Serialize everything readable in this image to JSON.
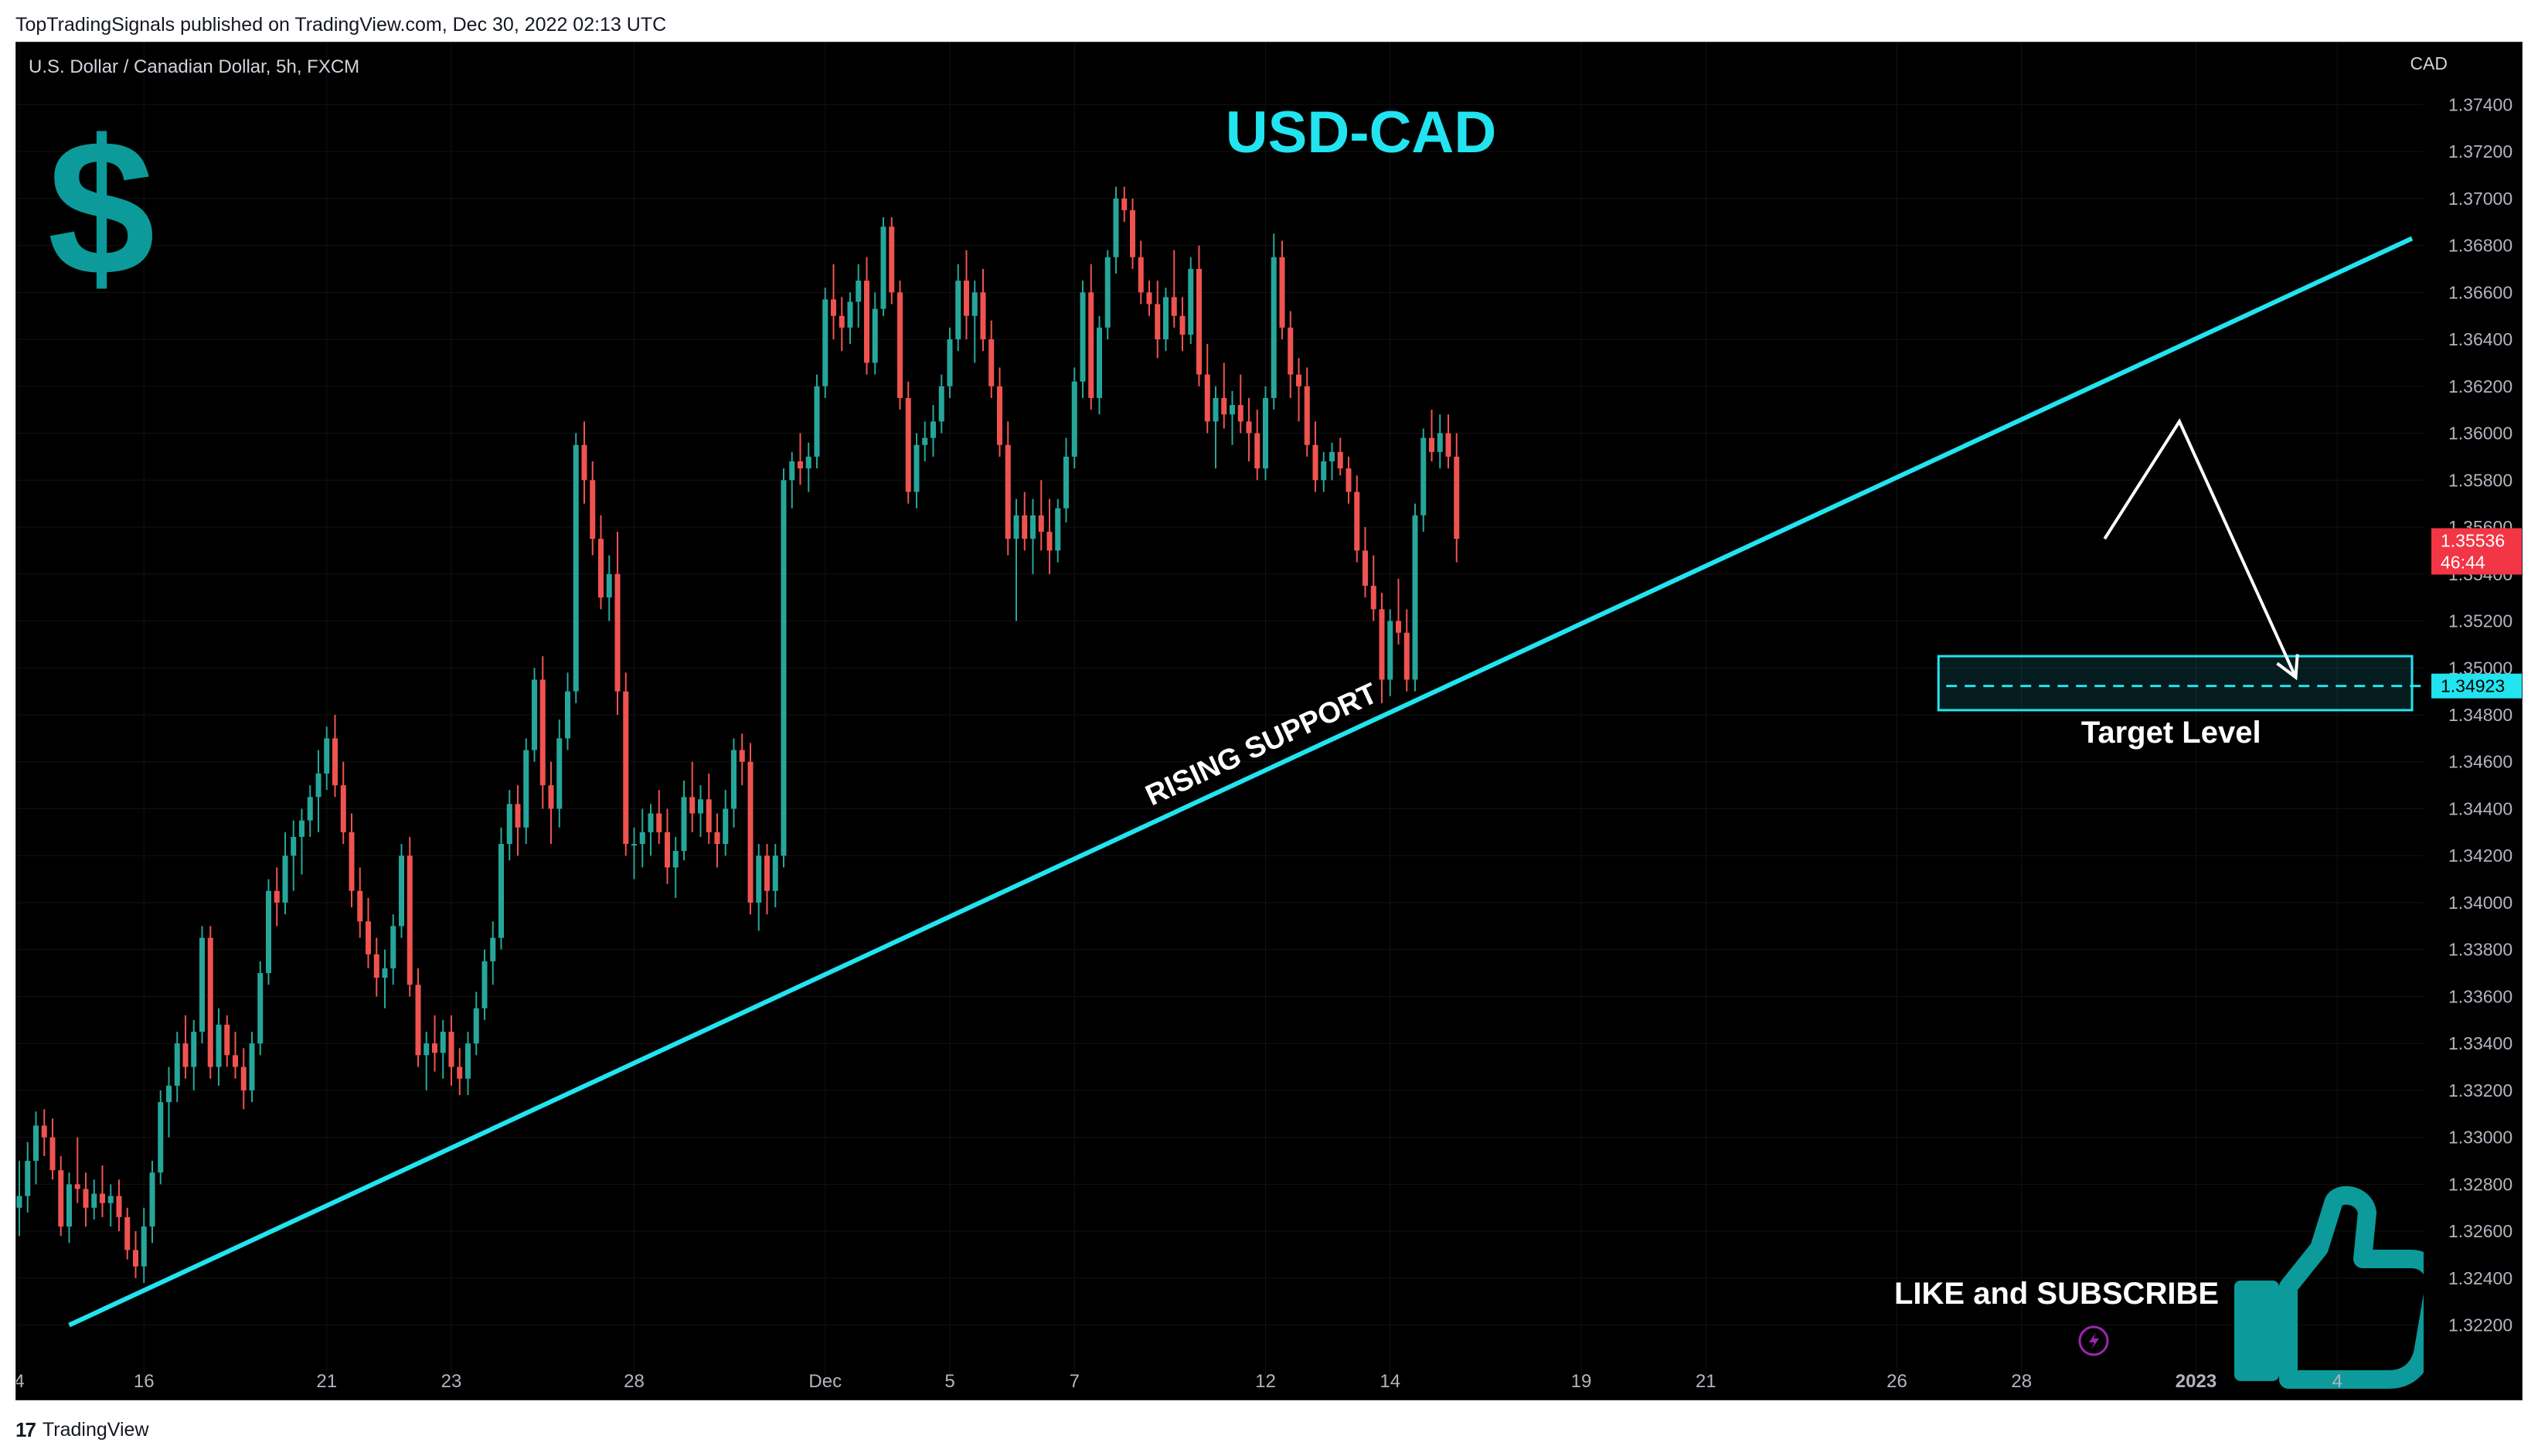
{
  "header": {
    "published_text": "TopTradingSignals published on TradingView.com, Dec 30, 2022 02:13 UTC"
  },
  "footer": {
    "brand": "TradingView",
    "logo_text": "17"
  },
  "chart_meta": {
    "symbol_line": "U.S. Dollar / Canadian Dollar, 5h, FXCM",
    "currency": "CAD"
  },
  "overlays": {
    "title": "USD-CAD",
    "dollar_icon": "dollar-sign-icon",
    "support_label": "RISING SUPPORT",
    "target_label": "Target Level",
    "cta_label": "LIKE and SUBSCRIBE",
    "thumbs_icon": "thumbs-up-icon",
    "bolt_icon": "lightning-bolt-icon"
  },
  "colors": {
    "up": "#26a69a",
    "down": "#ef5350",
    "accent": "#21e4f0",
    "teal_icon": "#0c9a9a",
    "price_badge": "#f23645",
    "grid": "#121212"
  },
  "chart_data": {
    "type": "candlestick",
    "title": "USD-CAD",
    "ylabel": "CAD",
    "ylim": [
      1.321,
      1.375
    ],
    "yticks": [
      "1.37400",
      "1.37200",
      "1.37000",
      "1.36800",
      "1.36600",
      "1.36400",
      "1.36200",
      "1.36000",
      "1.35800",
      "1.35600",
      "1.35400",
      "1.35200",
      "1.35000",
      "1.34800",
      "1.34600",
      "1.34400",
      "1.34200",
      "1.34000",
      "1.33800",
      "1.33600",
      "1.33400",
      "1.33200",
      "1.33000",
      "1.32800",
      "1.32600",
      "1.32400",
      "1.32200"
    ],
    "xticks": [
      {
        "label": "4",
        "idx": 0
      },
      {
        "label": "16",
        "idx": 15
      },
      {
        "label": "21",
        "idx": 37
      },
      {
        "label": "23",
        "idx": 52
      },
      {
        "label": "28",
        "idx": 74
      },
      {
        "label": "Dec",
        "idx": 97
      },
      {
        "label": "5",
        "idx": 112
      },
      {
        "label": "7",
        "idx": 127
      },
      {
        "label": "12",
        "idx": 150
      },
      {
        "label": "14",
        "idx": 165
      },
      {
        "label": "19",
        "idx": 188
      },
      {
        "label": "21",
        "idx": 203
      },
      {
        "label": "26",
        "idx": 226
      },
      {
        "label": "28",
        "idx": 241
      },
      {
        "label": "2023",
        "idx": 262
      },
      {
        "label": "4",
        "idx": 279
      }
    ],
    "current_price": {
      "value": "1.35536",
      "countdown": "46:44"
    },
    "target_price": "1.34923",
    "support_line": {
      "from": [
        6,
        1.322
      ],
      "to": [
        288,
        1.3683
      ]
    },
    "target_zone": {
      "from_idx": 231,
      "to_idx": 288,
      "low": 1.3482,
      "high": 1.3505
    },
    "projection_path": [
      [
        251,
        1.3555
      ],
      [
        260,
        1.3605
      ],
      [
        274,
        1.3496
      ]
    ],
    "points": [
      [
        1.327,
        1.329,
        1.3258,
        1.3275
      ],
      [
        1.3275,
        1.3298,
        1.3268,
        1.329
      ],
      [
        1.329,
        1.3311,
        1.328,
        1.3305
      ],
      [
        1.3305,
        1.3312,
        1.3292,
        1.33
      ],
      [
        1.33,
        1.3308,
        1.3282,
        1.3286
      ],
      [
        1.3286,
        1.3292,
        1.3258,
        1.3262
      ],
      [
        1.3262,
        1.3285,
        1.3255,
        1.328
      ],
      [
        1.328,
        1.33,
        1.3272,
        1.3278
      ],
      [
        1.3278,
        1.3285,
        1.3262,
        1.327
      ],
      [
        1.327,
        1.3282,
        1.3265,
        1.3276
      ],
      [
        1.3276,
        1.3288,
        1.3266,
        1.3272
      ],
      [
        1.3272,
        1.328,
        1.3262,
        1.3275
      ],
      [
        1.3275,
        1.3282,
        1.326,
        1.3266
      ],
      [
        1.3266,
        1.327,
        1.3248,
        1.3252
      ],
      [
        1.3252,
        1.326,
        1.324,
        1.3245
      ],
      [
        1.3245,
        1.327,
        1.3238,
        1.3262
      ],
      [
        1.3262,
        1.329,
        1.3255,
        1.3285
      ],
      [
        1.3285,
        1.332,
        1.328,
        1.3315
      ],
      [
        1.3315,
        1.333,
        1.33,
        1.3322
      ],
      [
        1.3322,
        1.3345,
        1.3315,
        1.334
      ],
      [
        1.334,
        1.3352,
        1.3325,
        1.333
      ],
      [
        1.333,
        1.335,
        1.332,
        1.3345
      ],
      [
        1.3345,
        1.339,
        1.334,
        1.3385
      ],
      [
        1.3385,
        1.339,
        1.3325,
        1.333
      ],
      [
        1.333,
        1.3355,
        1.3322,
        1.3348
      ],
      [
        1.3348,
        1.3352,
        1.333,
        1.3335
      ],
      [
        1.3335,
        1.3345,
        1.3325,
        1.333
      ],
      [
        1.333,
        1.3338,
        1.3312,
        1.332
      ],
      [
        1.332,
        1.3345,
        1.3315,
        1.334
      ],
      [
        1.334,
        1.3375,
        1.3335,
        1.337
      ],
      [
        1.337,
        1.341,
        1.3365,
        1.3405
      ],
      [
        1.3405,
        1.3415,
        1.339,
        1.34
      ],
      [
        1.34,
        1.343,
        1.3395,
        1.342
      ],
      [
        1.342,
        1.3435,
        1.3405,
        1.3428
      ],
      [
        1.3428,
        1.344,
        1.3412,
        1.3435
      ],
      [
        1.3435,
        1.345,
        1.3428,
        1.3445
      ],
      [
        1.3445,
        1.3465,
        1.343,
        1.3455
      ],
      [
        1.3455,
        1.3475,
        1.3448,
        1.347
      ],
      [
        1.347,
        1.348,
        1.3445,
        1.345
      ],
      [
        1.345,
        1.346,
        1.3425,
        1.343
      ],
      [
        1.343,
        1.3438,
        1.3398,
        1.3405
      ],
      [
        1.3405,
        1.3415,
        1.3385,
        1.3392
      ],
      [
        1.3392,
        1.3402,
        1.3372,
        1.3378
      ],
      [
        1.3378,
        1.3385,
        1.336,
        1.3368
      ],
      [
        1.3368,
        1.338,
        1.3355,
        1.3372
      ],
      [
        1.3372,
        1.3395,
        1.3365,
        1.339
      ],
      [
        1.339,
        1.3425,
        1.3385,
        1.342
      ],
      [
        1.342,
        1.3428,
        1.336,
        1.3365
      ],
      [
        1.3365,
        1.3372,
        1.333,
        1.3335
      ],
      [
        1.3335,
        1.3345,
        1.332,
        1.334
      ],
      [
        1.334,
        1.3352,
        1.3328,
        1.3336
      ],
      [
        1.3336,
        1.335,
        1.3325,
        1.3345
      ],
      [
        1.3345,
        1.3352,
        1.3322,
        1.333
      ],
      [
        1.333,
        1.3338,
        1.3318,
        1.3325
      ],
      [
        1.3325,
        1.3345,
        1.3318,
        1.334
      ],
      [
        1.334,
        1.3362,
        1.3335,
        1.3355
      ],
      [
        1.3355,
        1.338,
        1.335,
        1.3375
      ],
      [
        1.3375,
        1.3392,
        1.3365,
        1.3385
      ],
      [
        1.3385,
        1.3432,
        1.338,
        1.3425
      ],
      [
        1.3425,
        1.3448,
        1.3418,
        1.3442
      ],
      [
        1.3442,
        1.345,
        1.342,
        1.3432
      ],
      [
        1.3432,
        1.347,
        1.3425,
        1.3465
      ],
      [
        1.3465,
        1.35,
        1.346,
        1.3495
      ],
      [
        1.3495,
        1.3505,
        1.344,
        1.345
      ],
      [
        1.345,
        1.346,
        1.3425,
        1.344
      ],
      [
        1.344,
        1.3478,
        1.3432,
        1.347
      ],
      [
        1.347,
        1.3498,
        1.3465,
        1.349
      ],
      [
        1.349,
        1.36,
        1.3485,
        1.3595
      ],
      [
        1.3595,
        1.3605,
        1.357,
        1.358
      ],
      [
        1.358,
        1.3588,
        1.3548,
        1.3555
      ],
      [
        1.3555,
        1.3565,
        1.3525,
        1.353
      ],
      [
        1.353,
        1.3548,
        1.352,
        1.354
      ],
      [
        1.354,
        1.3558,
        1.348,
        1.349
      ],
      [
        1.349,
        1.3498,
        1.342,
        1.3425
      ],
      [
        1.3425,
        1.3432,
        1.341,
        1.3425
      ],
      [
        1.3425,
        1.344,
        1.3415,
        1.343
      ],
      [
        1.343,
        1.3442,
        1.342,
        1.3438
      ],
      [
        1.3438,
        1.3448,
        1.3425,
        1.343
      ],
      [
        1.343,
        1.344,
        1.3408,
        1.3415
      ],
      [
        1.3415,
        1.3428,
        1.3402,
        1.3422
      ],
      [
        1.3422,
        1.3452,
        1.3418,
        1.3445
      ],
      [
        1.3445,
        1.346,
        1.343,
        1.3438
      ],
      [
        1.3438,
        1.345,
        1.3428,
        1.3444
      ],
      [
        1.3444,
        1.3455,
        1.3425,
        1.343
      ],
      [
        1.343,
        1.3438,
        1.3415,
        1.3425
      ],
      [
        1.3425,
        1.3448,
        1.342,
        1.344
      ],
      [
        1.344,
        1.347,
        1.3432,
        1.3465
      ],
      [
        1.3465,
        1.3472,
        1.345,
        1.346
      ],
      [
        1.346,
        1.3468,
        1.3395,
        1.34
      ],
      [
        1.34,
        1.3425,
        1.3388,
        1.342
      ],
      [
        1.342,
        1.3425,
        1.3395,
        1.3405
      ],
      [
        1.3405,
        1.3425,
        1.3398,
        1.342
      ],
      [
        1.342,
        1.3585,
        1.3415,
        1.358
      ],
      [
        1.358,
        1.3592,
        1.3568,
        1.3588
      ],
      [
        1.3588,
        1.36,
        1.3578,
        1.3585
      ],
      [
        1.3585,
        1.3596,
        1.3575,
        1.359
      ],
      [
        1.359,
        1.3625,
        1.3585,
        1.362
      ],
      [
        1.362,
        1.3662,
        1.3615,
        1.3657
      ],
      [
        1.3657,
        1.3672,
        1.364,
        1.365
      ],
      [
        1.365,
        1.3658,
        1.3635,
        1.3645
      ],
      [
        1.3645,
        1.366,
        1.3638,
        1.3656
      ],
      [
        1.3656,
        1.3672,
        1.3645,
        1.3665
      ],
      [
        1.3665,
        1.3675,
        1.3625,
        1.363
      ],
      [
        1.363,
        1.366,
        1.3625,
        1.3653
      ],
      [
        1.3653,
        1.3692,
        1.365,
        1.3688
      ],
      [
        1.3688,
        1.3692,
        1.3655,
        1.366
      ],
      [
        1.366,
        1.3665,
        1.361,
        1.3615
      ],
      [
        1.3615,
        1.3622,
        1.357,
        1.3575
      ],
      [
        1.3575,
        1.36,
        1.3568,
        1.3595
      ],
      [
        1.3595,
        1.3605,
        1.3588,
        1.3598
      ],
      [
        1.3598,
        1.3612,
        1.359,
        1.3605
      ],
      [
        1.3605,
        1.3625,
        1.36,
        1.362
      ],
      [
        1.362,
        1.3645,
        1.3615,
        1.364
      ],
      [
        1.364,
        1.3672,
        1.3635,
        1.3665
      ],
      [
        1.3665,
        1.3678,
        1.364,
        1.365
      ],
      [
        1.365,
        1.3665,
        1.363,
        1.366
      ],
      [
        1.366,
        1.367,
        1.3635,
        1.364
      ],
      [
        1.364,
        1.3648,
        1.3615,
        1.362
      ],
      [
        1.362,
        1.3628,
        1.359,
        1.3595
      ],
      [
        1.3595,
        1.3605,
        1.3548,
        1.3555
      ],
      [
        1.3555,
        1.3572,
        1.352,
        1.3565
      ],
      [
        1.3565,
        1.3575,
        1.355,
        1.3555
      ],
      [
        1.3555,
        1.3572,
        1.354,
        1.3565
      ],
      [
        1.3565,
        1.358,
        1.355,
        1.3558
      ],
      [
        1.3558,
        1.3572,
        1.354,
        1.355
      ],
      [
        1.355,
        1.3572,
        1.3545,
        1.3568
      ],
      [
        1.3568,
        1.3598,
        1.3562,
        1.359
      ],
      [
        1.359,
        1.3628,
        1.3585,
        1.3622
      ],
      [
        1.3622,
        1.3665,
        1.3615,
        1.366
      ],
      [
        1.366,
        1.3672,
        1.361,
        1.3615
      ],
      [
        1.3615,
        1.365,
        1.3608,
        1.3645
      ],
      [
        1.3645,
        1.3678,
        1.364,
        1.3675
      ],
      [
        1.3675,
        1.3705,
        1.3668,
        1.37
      ],
      [
        1.37,
        1.3705,
        1.369,
        1.3695
      ],
      [
        1.3695,
        1.37,
        1.367,
        1.3675
      ],
      [
        1.3675,
        1.3682,
        1.3655,
        1.366
      ],
      [
        1.366,
        1.3665,
        1.365,
        1.3655
      ],
      [
        1.3655,
        1.3665,
        1.3632,
        1.364
      ],
      [
        1.364,
        1.3662,
        1.3635,
        1.3658
      ],
      [
        1.3658,
        1.3678,
        1.3645,
        1.365
      ],
      [
        1.365,
        1.3658,
        1.3635,
        1.3642
      ],
      [
        1.3642,
        1.3675,
        1.3638,
        1.367
      ],
      [
        1.367,
        1.368,
        1.362,
        1.3625
      ],
      [
        1.3625,
        1.3638,
        1.36,
        1.3605
      ],
      [
        1.3605,
        1.362,
        1.3585,
        1.3615
      ],
      [
        1.3615,
        1.363,
        1.3602,
        1.3608
      ],
      [
        1.3608,
        1.3618,
        1.3595,
        1.3612
      ],
      [
        1.3612,
        1.3625,
        1.36,
        1.3605
      ],
      [
        1.3605,
        1.3615,
        1.3588,
        1.36
      ],
      [
        1.36,
        1.361,
        1.358,
        1.3585
      ],
      [
        1.3585,
        1.362,
        1.358,
        1.3615
      ],
      [
        1.3615,
        1.3685,
        1.361,
        1.3675
      ],
      [
        1.3675,
        1.3682,
        1.364,
        1.3645
      ],
      [
        1.3645,
        1.3652,
        1.3615,
        1.3625
      ],
      [
        1.3625,
        1.3632,
        1.3605,
        1.362
      ],
      [
        1.362,
        1.3628,
        1.359,
        1.3595
      ],
      [
        1.3595,
        1.3605,
        1.3575,
        1.358
      ],
      [
        1.358,
        1.3592,
        1.3575,
        1.3588
      ],
      [
        1.3588,
        1.3596,
        1.358,
        1.3592
      ],
      [
        1.3592,
        1.3598,
        1.3582,
        1.3585
      ],
      [
        1.3585,
        1.359,
        1.357,
        1.3575
      ],
      [
        1.3575,
        1.3582,
        1.3545,
        1.355
      ],
      [
        1.355,
        1.356,
        1.353,
        1.3535
      ],
      [
        1.3535,
        1.3548,
        1.352,
        1.3525
      ],
      [
        1.3525,
        1.3532,
        1.3485,
        1.3495
      ],
      [
        1.3495,
        1.3525,
        1.3488,
        1.352
      ],
      [
        1.352,
        1.3538,
        1.351,
        1.3515
      ],
      [
        1.3515,
        1.3525,
        1.349,
        1.3495
      ],
      [
        1.3495,
        1.357,
        1.349,
        1.3565
      ],
      [
        1.3565,
        1.3602,
        1.3558,
        1.3598
      ],
      [
        1.3598,
        1.361,
        1.3588,
        1.3592
      ],
      [
        1.3592,
        1.3608,
        1.3585,
        1.36
      ],
      [
        1.36,
        1.3608,
        1.3585,
        1.359
      ],
      [
        1.359,
        1.36,
        1.3545,
        1.3555
      ]
    ]
  }
}
